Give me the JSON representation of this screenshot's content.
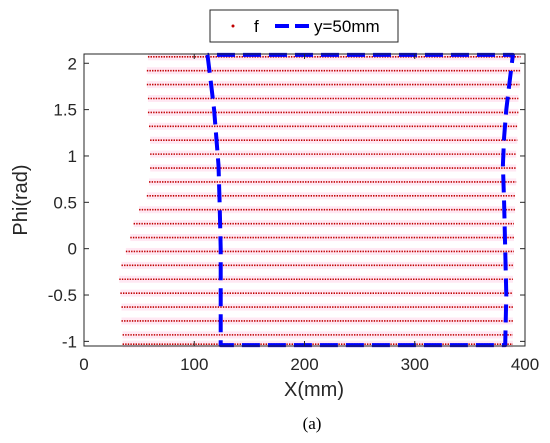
{
  "chart_data": {
    "type": "scatter",
    "xlabel": "X(mm)",
    "ylabel": "Phi(rad)",
    "xlim": [
      0,
      400
    ],
    "ylim": [
      -1.05,
      2.1
    ],
    "xticks": [
      0,
      100,
      200,
      300,
      400
    ],
    "yticks": [
      -1,
      -0.5,
      0,
      0.5,
      1,
      1.5,
      2
    ],
    "xtick_labels": [
      "0",
      "100",
      "200",
      "300",
      "400"
    ],
    "ytick_labels": [
      "-1",
      "-0.5",
      "0",
      "0.5",
      "1",
      "1.5",
      "2"
    ],
    "legend_position": "top",
    "series": [
      {
        "name": "f",
        "style": "points",
        "color": "#c00000",
        "rows": [
          {
            "phi": 2.07,
            "x": [
              58,
              396
            ]
          },
          {
            "phi": 1.92,
            "x": [
              57,
              396
            ]
          },
          {
            "phi": 1.77,
            "x": [
              57,
              395
            ]
          },
          {
            "phi": 1.62,
            "x": [
              58,
              394
            ]
          },
          {
            "phi": 1.47,
            "x": [
              58,
              394
            ]
          },
          {
            "phi": 1.32,
            "x": [
              59,
              393
            ]
          },
          {
            "phi": 1.17,
            "x": [
              60,
              393
            ]
          },
          {
            "phi": 1.02,
            "x": [
              60,
              392
            ]
          },
          {
            "phi": 0.87,
            "x": [
              60,
              392
            ]
          },
          {
            "phi": 0.72,
            "x": [
              59,
              392
            ]
          },
          {
            "phi": 0.57,
            "x": [
              57,
              391
            ]
          },
          {
            "phi": 0.42,
            "x": [
              50,
              391
            ]
          },
          {
            "phi": 0.27,
            "x": [
              45,
              390
            ]
          },
          {
            "phi": 0.12,
            "x": [
              42,
              390
            ]
          },
          {
            "phi": -0.03,
            "x": [
              38,
              390
            ]
          },
          {
            "phi": -0.18,
            "x": [
              34,
              390
            ]
          },
          {
            "phi": -0.33,
            "x": [
              32,
              389
            ]
          },
          {
            "phi": -0.48,
            "x": [
              33,
              389
            ]
          },
          {
            "phi": -0.63,
            "x": [
              34,
              389
            ]
          },
          {
            "phi": -0.78,
            "x": [
              34,
              389
            ]
          },
          {
            "phi": -0.93,
            "x": [
              35,
              389
            ]
          },
          {
            "phi": -1.03,
            "x": [
              35,
              389
            ]
          }
        ]
      },
      {
        "name": "y=50mm",
        "style": "dashed",
        "color": "#0000ff",
        "points": [
          [
            112,
            2.09
          ],
          [
            115,
            1.8
          ],
          [
            118,
            1.5
          ],
          [
            120,
            1.2
          ],
          [
            122,
            0.9
          ],
          [
            123,
            0.5
          ],
          [
            124,
            0
          ],
          [
            124,
            -0.5
          ],
          [
            124,
            -1.04
          ],
          [
            200,
            -1.04
          ],
          [
            300,
            -1.04
          ],
          [
            382,
            -1.04
          ],
          [
            383,
            -0.5
          ],
          [
            382,
            0
          ],
          [
            381,
            0.5
          ],
          [
            380,
            0.9
          ],
          [
            381,
            1.2
          ],
          [
            383,
            1.5
          ],
          [
            386,
            1.8
          ],
          [
            389,
            2.09
          ],
          [
            300,
            2.09
          ],
          [
            200,
            2.09
          ],
          [
            112,
            2.09
          ]
        ]
      }
    ]
  },
  "caption": "(a)",
  "colors": {
    "background": "#ffffff",
    "axis": "#262626",
    "points": "#c00000",
    "outline": "#0000ff",
    "points_halo": "#ffd6ea"
  }
}
